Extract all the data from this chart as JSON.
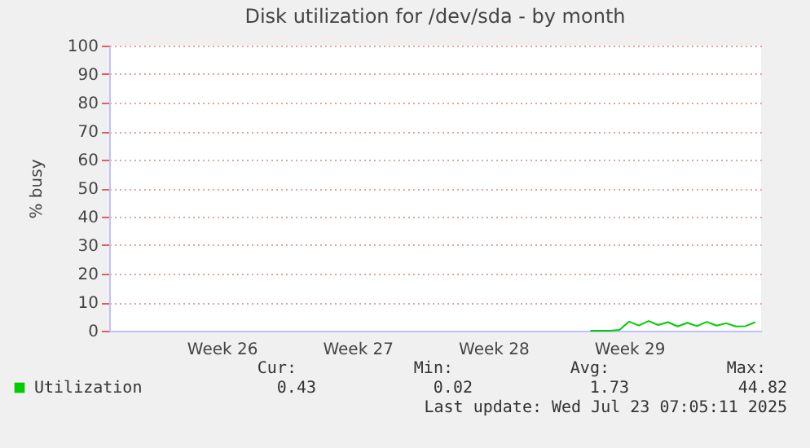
{
  "chart_data": {
    "type": "line",
    "title": "Disk utilization for /dev/sda - by month",
    "ylabel": "% busy",
    "categories": [
      null,
      null,
      null,
      null,
      null,
      null,
      null,
      null,
      null,
      null,
      null,
      "Week 26",
      null,
      null,
      null,
      null,
      null,
      null,
      null,
      null,
      null,
      null,
      null,
      null,
      null,
      "Week 27",
      null,
      null,
      null,
      null,
      null,
      null,
      null,
      null,
      null,
      null,
      null,
      null,
      null,
      "Week 28",
      null,
      null,
      null,
      null,
      null,
      null,
      null,
      null,
      null,
      null,
      null,
      null,
      null,
      "Week 29",
      null,
      null,
      null,
      null,
      null,
      null,
      null,
      null,
      null,
      null,
      null,
      null,
      null
    ],
    "ylim": [
      0,
      100
    ],
    "yticks": [
      0,
      10,
      20,
      30,
      40,
      50,
      60,
      70,
      80,
      90,
      100
    ],
    "grid": "y",
    "legend": "bottom left",
    "marker": "none",
    "line_style": "solid",
    "series": [
      {
        "name": "Utilization",
        "color": "#00cc00",
        "values": [
          null,
          null,
          null,
          null,
          null,
          null,
          null,
          null,
          null,
          null,
          null,
          null,
          null,
          null,
          null,
          null,
          null,
          null,
          null,
          null,
          null,
          null,
          null,
          null,
          null,
          null,
          null,
          null,
          null,
          null,
          null,
          null,
          null,
          null,
          null,
          null,
          null,
          null,
          null,
          null,
          null,
          null,
          null,
          null,
          null,
          null,
          null,
          null,
          null,
          0,
          0,
          0,
          0.3,
          3.2,
          1.8,
          3.4,
          2.0,
          3.0,
          1.5,
          2.8,
          1.6,
          3.1,
          1.8,
          2.6,
          1.5,
          1.6,
          3.0
        ]
      }
    ],
    "annotations": [
      "Cur:",
      "Min:",
      "Avg:",
      "Max:",
      "0.43",
      "0.02",
      "1.73",
      "44.82",
      "Last update: Wed Jul 23 07:05:11 2025"
    ]
  }
}
